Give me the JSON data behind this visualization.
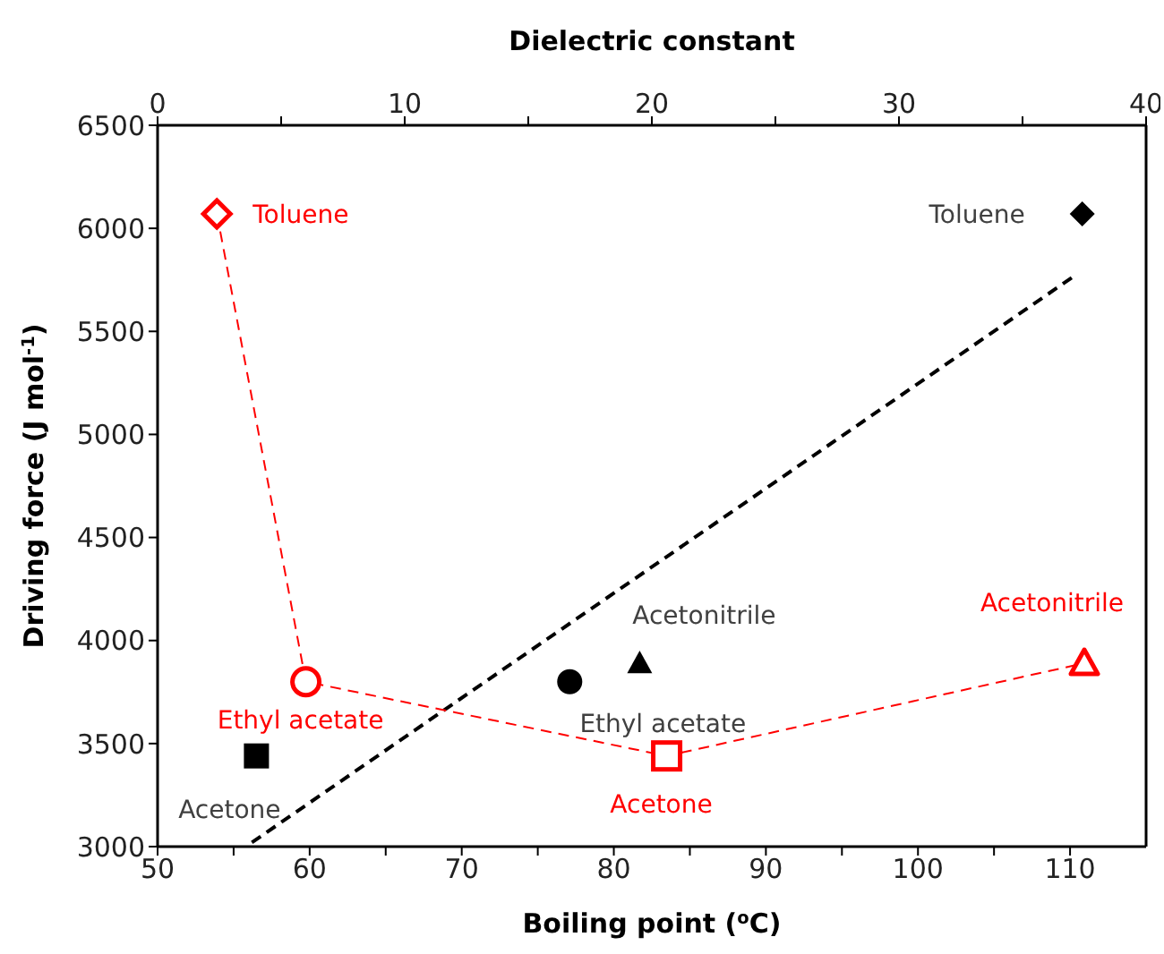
{
  "chart_data": {
    "type": "scatter",
    "xlabel": "Boiling point ($^{o}$C)",
    "x2label": "Dielectric constant",
    "ylabel": "Driving force (J mol$^{-1}$)",
    "xlim": [
      50,
      115
    ],
    "xticks": [
      50,
      {
        "value": 55,
        "label": null
      },
      60,
      {
        "value": 65,
        "label": null
      },
      70,
      {
        "value": 75,
        "label": null
      },
      80,
      {
        "value": 85,
        "label": null
      },
      90,
      {
        "value": 95,
        "label": null
      },
      100,
      {
        "value": 105,
        "label": null
      },
      110
    ],
    "x2lim": [
      0,
      40
    ],
    "x2ticks": [
      0,
      {
        "value": 5,
        "label": null
      },
      10,
      {
        "value": 15,
        "label": null
      },
      20,
      {
        "value": 25,
        "label": null
      },
      30,
      {
        "value": 35,
        "label": null
      },
      40
    ],
    "ylim": [
      3000,
      6500
    ],
    "yticks": [
      3000,
      3500,
      4000,
      4500,
      5000,
      5500,
      6000,
      6500
    ],
    "grid": false,
    "legend": false,
    "series": [
      {
        "type": "line",
        "color": "#000000",
        "x": [
          56.2,
          110.3
        ],
        "values": [
          3020,
          5770
        ],
        "marker": "none",
        "line_style": "dashed"
      },
      {
        "type": "line",
        "color": "#ff0000",
        "axis": "x2",
        "x": [
          2.4,
          6.0,
          20.6,
          37.5
        ],
        "values": [
          6070,
          3800,
          3440,
          3890
        ],
        "marker": "none",
        "line_style": "dashed"
      },
      {
        "name": "Acetone",
        "color": "#000000",
        "x": [
          56.5
        ],
        "values": [
          3440
        ],
        "marker": "square"
      },
      {
        "name": "Ethyl acetate",
        "color": "#000000",
        "x": [
          77.1
        ],
        "values": [
          3800
        ],
        "marker": "circle"
      },
      {
        "name": "Acetonitrile",
        "color": "#000000",
        "x": [
          81.7
        ],
        "values": [
          3890
        ],
        "marker": "triangle"
      },
      {
        "name": "Toluene",
        "color": "#000000",
        "x": [
          110.8
        ],
        "values": [
          6070
        ],
        "marker": "diamond"
      },
      {
        "name": "Toluene",
        "color": "#ff0000",
        "axis": "x2",
        "x": [
          2.4
        ],
        "values": [
          6070
        ],
        "marker": "diamond"
      },
      {
        "name": "Ethyl acetate",
        "color": "#ff0000",
        "axis": "x2",
        "x": [
          6.0
        ],
        "values": [
          3800
        ],
        "marker": "circle"
      },
      {
        "name": "Acetone",
        "color": "#ff0000",
        "axis": "x2",
        "x": [
          20.6
        ],
        "values": [
          3440
        ],
        "marker": "square"
      },
      {
        "name": "Acetonitrile",
        "color": "#ff0000",
        "axis": "x2",
        "x": [
          37.5
        ],
        "values": [
          3890
        ],
        "marker": "triangle"
      }
    ]
  }
}
